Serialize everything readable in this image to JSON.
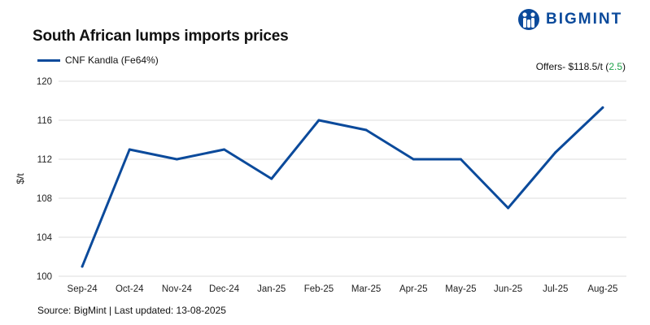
{
  "header": {
    "title": "South African lumps imports prices",
    "logo_text": "BIGMINT"
  },
  "offer": {
    "label": "Offers- $118.5/t (",
    "change": "2.5",
    "suffix": ")"
  },
  "footer": {
    "source": "Source: BigMint | Last updated: 13-08-2025"
  },
  "colors": {
    "series": "#0b4a9b",
    "change_positive": "#1fa24a",
    "grid": "#dddddd"
  },
  "chart_data": {
    "type": "line",
    "title": "South African lumps imports prices",
    "xlabel": "",
    "ylabel": "$/t",
    "ylim": [
      100,
      120
    ],
    "yticks": [
      100,
      104,
      108,
      112,
      116,
      120
    ],
    "grid": true,
    "legend_position": "top-left",
    "categories": [
      "Sep-24",
      "Oct-24",
      "Nov-24",
      "Dec-24",
      "Jan-25",
      "Feb-25",
      "Mar-25",
      "Apr-25",
      "May-25",
      "Jun-25",
      "Jul-25",
      "Aug-25"
    ],
    "series": [
      {
        "name": "CNF Kandla (Fe64%)",
        "values": [
          101,
          113,
          112,
          113,
          110,
          116,
          115,
          112,
          112,
          107,
          112.7,
          117.3
        ]
      }
    ]
  }
}
